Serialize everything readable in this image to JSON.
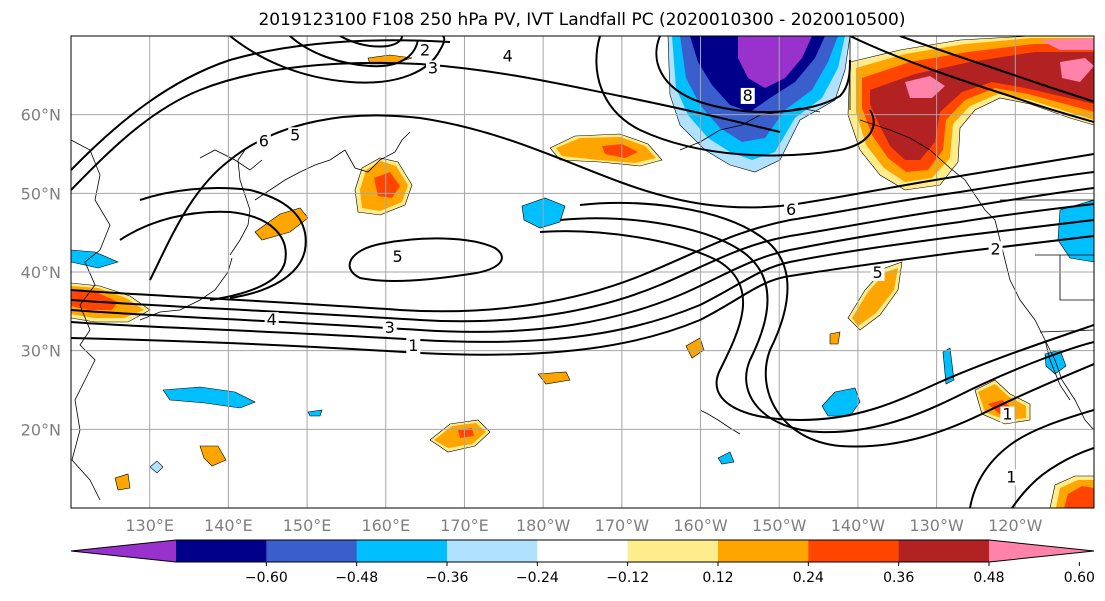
{
  "title": "2019123100 F108 250 hPa PV, IVT Landfall PC (2020010300 - 2020010500)",
  "map": {
    "lon_range": [
      120,
      250
    ],
    "lat_range": [
      10,
      70
    ],
    "lon_ticks": [
      {
        "lon": 130,
        "label": "130°E"
      },
      {
        "lon": 140,
        "label": "140°E"
      },
      {
        "lon": 150,
        "label": "150°E"
      },
      {
        "lon": 160,
        "label": "160°E"
      },
      {
        "lon": 170,
        "label": "170°E"
      },
      {
        "lon": 180,
        "label": "180°W"
      },
      {
        "lon": 190,
        "label": "170°W"
      },
      {
        "lon": 200,
        "label": "160°W"
      },
      {
        "lon": 210,
        "label": "150°W"
      },
      {
        "lon": 220,
        "label": "140°W"
      },
      {
        "lon": 230,
        "label": "130°W"
      },
      {
        "lon": 240,
        "label": "120°W"
      }
    ],
    "lat_ticks": [
      {
        "lat": 20,
        "label": "20°N"
      },
      {
        "lat": 30,
        "label": "30°N"
      },
      {
        "lat": 40,
        "label": "40°N"
      },
      {
        "lat": 50,
        "label": "50°N"
      },
      {
        "lat": 60,
        "label": "60°N"
      }
    ],
    "grid": true,
    "contour_labels": [
      {
        "text": "2",
        "lon": 165,
        "lat": 67.8
      },
      {
        "text": "3",
        "lon": 166,
        "lat": 65.5
      },
      {
        "text": "4",
        "lon": 175.5,
        "lat": 67
      },
      {
        "text": "5",
        "lon": 148.5,
        "lat": 57
      },
      {
        "text": "6",
        "lon": 144.5,
        "lat": 56.2
      },
      {
        "text": "8",
        "lon": 206,
        "lat": 62
      },
      {
        "text": "6",
        "lon": 211.5,
        "lat": 47.5
      },
      {
        "text": "5",
        "lon": 161.5,
        "lat": 41.5
      },
      {
        "text": "5",
        "lon": 222.5,
        "lat": 39.5
      },
      {
        "text": "4",
        "lon": 145.5,
        "lat": 33.5
      },
      {
        "text": "3",
        "lon": 160.5,
        "lat": 32.5
      },
      {
        "text": "1",
        "lon": 163.5,
        "lat": 30.2
      },
      {
        "text": "2",
        "lon": 237.5,
        "lat": 42.5
      },
      {
        "text": "1",
        "lon": 239,
        "lat": 21.5
      },
      {
        "text": "1",
        "lon": 239.5,
        "lat": 13.5
      }
    ]
  },
  "colorbar": {
    "colors": [
      "#9932cc",
      "#00008b",
      "#3a5fcd",
      "#00bfff",
      "#b0e2ff",
      "#ffffff",
      "#ffec8b",
      "#ffa500",
      "#ff4500",
      "#b22222",
      "#ff82ab"
    ],
    "labels": [
      "−0.60",
      "−0.48",
      "−0.36",
      "−0.24",
      "−0.12",
      "0.12",
      "0.24",
      "0.36",
      "0.48",
      "0.60"
    ]
  },
  "colors": {
    "tick_label": "#7f7f7f",
    "grid": "#a6a6a6",
    "contour": "#000000"
  }
}
